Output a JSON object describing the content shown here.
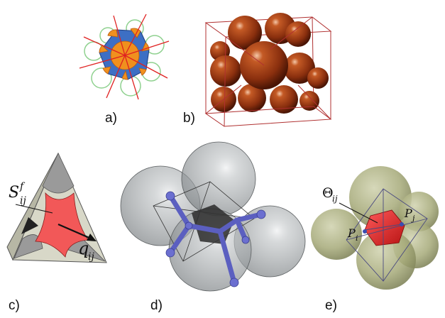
{
  "panels": {
    "a": {
      "label": "a)"
    },
    "b": {
      "label": "b)"
    },
    "c": {
      "label": "c)",
      "symbol_s": "S",
      "symbol_s_sup": "f",
      "symbol_s_sub": "ij",
      "symbol_q": "q",
      "symbol_q_sub": "ij"
    },
    "d": {
      "label": "d)"
    },
    "e": {
      "label": "e)",
      "symbol_theta": "Θ",
      "symbol_theta_sub": "ij",
      "symbol_pi": "P",
      "symbol_pi_sub": "i",
      "symbol_pj": "P",
      "symbol_pj_sub": "j"
    }
  },
  "colors": {
    "orange": "#f0901e",
    "blue": "#3d6fc4",
    "green_circle": "#8fd18f",
    "red_line": "#e02020",
    "sphere_copper": "#9c3a14",
    "box_red": "#b03030",
    "triangle_face": "#d8d8c8",
    "red_region": "#f25858",
    "gray_sphere": "#a8acae",
    "purple_bond": "#5b5fc0",
    "olive_sphere": "#a9ad7e",
    "red_cell": "#e02828"
  }
}
